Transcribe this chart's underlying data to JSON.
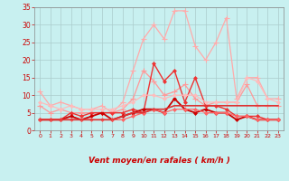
{
  "xlabel": "Vent moyen/en rafales ( km/h )",
  "bg_color": "#c8f0f0",
  "grid_color": "#aacccc",
  "xlim": [
    -0.5,
    23.5
  ],
  "ylim": [
    0,
    35
  ],
  "yticks": [
    0,
    5,
    10,
    15,
    20,
    25,
    30,
    35
  ],
  "xticks": [
    0,
    1,
    2,
    3,
    4,
    5,
    6,
    7,
    8,
    9,
    10,
    11,
    12,
    13,
    14,
    15,
    16,
    17,
    18,
    19,
    20,
    21,
    22,
    23
  ],
  "series": [
    {
      "color": "#ffaaaa",
      "lw": 0.9,
      "marker": "+",
      "ms": 4,
      "mew": 0.8,
      "data": [
        11,
        7,
        8,
        7,
        6,
        6,
        7,
        5,
        8,
        17,
        26,
        30,
        26,
        34,
        34,
        24,
        20,
        25,
        32,
        9,
        15,
        15,
        9,
        9
      ]
    },
    {
      "color": "#ff9999",
      "lw": 0.9,
      "marker": "+",
      "ms": 4,
      "mew": 0.8,
      "data": [
        7,
        5,
        6,
        5,
        5,
        5,
        5,
        5,
        6,
        9,
        17,
        14,
        10,
        11,
        13,
        9,
        7,
        8,
        8,
        8,
        13,
        7,
        7,
        7
      ]
    },
    {
      "color": "#ee3333",
      "lw": 1.0,
      "marker": "D",
      "ms": 2.0,
      "mew": 0.5,
      "data": [
        3,
        3,
        3,
        5,
        4,
        5,
        5,
        5,
        5,
        6,
        5,
        19,
        14,
        17,
        8,
        15,
        7,
        7,
        6,
        4,
        4,
        4,
        3,
        3
      ]
    },
    {
      "color": "#cc0000",
      "lw": 1.3,
      "marker": "D",
      "ms": 2.0,
      "mew": 0.5,
      "data": [
        3,
        3,
        3,
        4,
        3,
        4,
        5,
        3,
        4,
        5,
        6,
        6,
        5,
        9,
        6,
        5,
        6,
        5,
        5,
        3,
        4,
        3,
        3,
        3
      ]
    },
    {
      "color": "#ff6666",
      "lw": 0.9,
      "marker": "D",
      "ms": 2.0,
      "mew": 0.5,
      "data": [
        3,
        3,
        3,
        3,
        3,
        3,
        3,
        3,
        3,
        4,
        5,
        6,
        5,
        6,
        6,
        6,
        5,
        5,
        5,
        4,
        4,
        3,
        3,
        3
      ]
    },
    {
      "color": "#ffbbbb",
      "lw": 0.9,
      "marker": "D",
      "ms": 2.0,
      "mew": 0.5,
      "data": [
        8,
        7,
        6,
        7,
        6,
        6,
        6,
        6,
        7,
        8,
        10,
        10,
        9,
        10,
        10,
        10,
        8,
        8,
        8,
        8,
        15,
        14,
        9,
        8
      ]
    },
    {
      "color": "#dd3333",
      "lw": 1.2,
      "marker": null,
      "ms": 0,
      "mew": 0,
      "data": [
        3,
        3,
        3,
        3,
        3,
        3,
        3,
        3,
        4,
        5,
        5,
        6,
        6,
        7,
        7,
        7,
        7,
        7,
        7,
        7,
        7,
        7,
        7,
        7
      ]
    }
  ],
  "wind_angles": [
    225,
    225,
    225,
    315,
    0,
    315,
    270,
    270,
    270,
    270,
    270,
    270,
    270,
    270,
    270,
    270,
    270,
    270,
    270,
    270,
    270,
    270,
    270,
    270
  ],
  "arrow_color": "#cc0000"
}
